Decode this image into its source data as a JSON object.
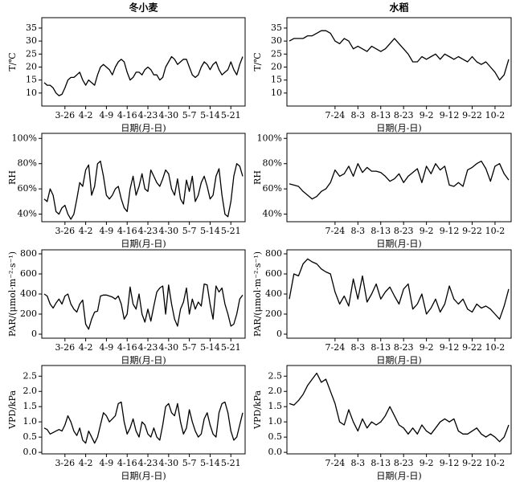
{
  "chart_data": [
    {
      "type": "line",
      "title": "冬小麦",
      "y_label": "T/℃",
      "x_label": "日期(月-日)",
      "color": "#000000",
      "categories": [
        null,
        null,
        null,
        null,
        null,
        null,
        null,
        "3-26",
        null,
        null,
        null,
        null,
        null,
        null,
        "4-2",
        null,
        null,
        null,
        null,
        null,
        null,
        "4-9",
        null,
        null,
        null,
        null,
        null,
        null,
        "4-16",
        null,
        null,
        null,
        null,
        null,
        null,
        "4-23",
        null,
        null,
        null,
        null,
        null,
        null,
        "4-30",
        null,
        null,
        null,
        null,
        null,
        null,
        "5-7",
        null,
        null,
        null,
        null,
        null,
        null,
        "5-14",
        null,
        null,
        null,
        null,
        null,
        null,
        "5-21",
        null,
        null,
        null,
        null
      ],
      "values": [
        14,
        13,
        13,
        12,
        10,
        9,
        9.5,
        12,
        15,
        16,
        16,
        17,
        18,
        15,
        13,
        15,
        14,
        13,
        17,
        20,
        21,
        20,
        19,
        17,
        20,
        22,
        23,
        22,
        18,
        15,
        16,
        18,
        18,
        17,
        19,
        20,
        19,
        17,
        17,
        15,
        16,
        20,
        22,
        24,
        23,
        21,
        22,
        23,
        23,
        20,
        17,
        16,
        17,
        20,
        22,
        21,
        19,
        21,
        22,
        19,
        17,
        18,
        19,
        22,
        19,
        17,
        21,
        24
      ],
      "ylim": [
        5,
        39
      ],
      "yticks": [
        10,
        15,
        20,
        25,
        30,
        35
      ]
    },
    {
      "type": "line",
      "title": "水稻",
      "y_label": "T/℃",
      "x_label": "日期(月-日)",
      "color": "#000000",
      "categories": [
        null,
        null,
        null,
        null,
        null,
        null,
        null,
        null,
        null,
        null,
        "7-24",
        null,
        null,
        null,
        null,
        "8-3",
        null,
        null,
        null,
        null,
        "8-13",
        null,
        null,
        null,
        null,
        "8-23",
        null,
        null,
        null,
        null,
        "9-2",
        null,
        null,
        null,
        null,
        "9-12",
        null,
        null,
        null,
        null,
        "9-22",
        null,
        null,
        null,
        null,
        "10-2",
        null,
        null,
        null
      ],
      "values": [
        30,
        31,
        31,
        31,
        32,
        32,
        33,
        34,
        34,
        33,
        30,
        29,
        31,
        30,
        27,
        28,
        27,
        26,
        28,
        27,
        26,
        27,
        29,
        31,
        29,
        27,
        25,
        22,
        22,
        24,
        23,
        24,
        25,
        23,
        25,
        24,
        23,
        24,
        23,
        22,
        24,
        22,
        21,
        22,
        20,
        18,
        15,
        17,
        23
      ],
      "ylim": [
        5,
        39
      ],
      "yticks": [
        10,
        15,
        20,
        25,
        30,
        35
      ]
    },
    {
      "type": "line",
      "y_label": "RH",
      "x_label": "日期(月-日)",
      "color": "#000000",
      "categories": [
        null,
        null,
        null,
        null,
        null,
        null,
        null,
        "3-26",
        null,
        null,
        null,
        null,
        null,
        null,
        "4-2",
        null,
        null,
        null,
        null,
        null,
        null,
        "4-9",
        null,
        null,
        null,
        null,
        null,
        null,
        "4-16",
        null,
        null,
        null,
        null,
        null,
        null,
        "4-23",
        null,
        null,
        null,
        null,
        null,
        null,
        "4-30",
        null,
        null,
        null,
        null,
        null,
        null,
        "5-7",
        null,
        null,
        null,
        null,
        null,
        null,
        "5-14",
        null,
        null,
        null,
        null,
        null,
        null,
        "5-21",
        null,
        null,
        null,
        null
      ],
      "values": [
        52,
        50,
        60,
        55,
        42,
        40,
        45,
        47,
        40,
        36,
        40,
        52,
        65,
        62,
        75,
        79,
        55,
        62,
        80,
        82,
        70,
        55,
        52,
        55,
        60,
        62,
        52,
        45,
        42,
        60,
        70,
        55,
        62,
        72,
        60,
        58,
        75,
        70,
        65,
        62,
        68,
        75,
        72,
        60,
        55,
        68,
        52,
        48,
        67,
        58,
        70,
        50,
        55,
        65,
        70,
        62,
        52,
        55,
        70,
        76,
        55,
        40,
        38,
        50,
        70,
        80,
        78,
        70
      ],
      "ylim": [
        34,
        104
      ],
      "yticks": [
        {
          "value": 40,
          "label": "40%"
        },
        {
          "value": 60,
          "label": "60%"
        },
        {
          "value": 80,
          "label": "80%"
        },
        {
          "value": 100,
          "label": "100%"
        }
      ]
    },
    {
      "type": "line",
      "y_label": "RH",
      "x_label": "日期(月-日)",
      "color": "#000000",
      "categories": [
        null,
        null,
        null,
        null,
        null,
        null,
        null,
        null,
        null,
        null,
        "7-24",
        null,
        null,
        null,
        null,
        "8-3",
        null,
        null,
        null,
        null,
        "8-13",
        null,
        null,
        null,
        null,
        "8-23",
        null,
        null,
        null,
        null,
        "9-2",
        null,
        null,
        null,
        null,
        "9-12",
        null,
        null,
        null,
        null,
        "9-22",
        null,
        null,
        null,
        null,
        "10-2",
        null,
        null,
        null
      ],
      "values": [
        64,
        63,
        62,
        58,
        55,
        52,
        54,
        58,
        60,
        65,
        75,
        70,
        72,
        78,
        70,
        80,
        73,
        77,
        74,
        74,
        73,
        70,
        66,
        68,
        72,
        65,
        70,
        73,
        76,
        65,
        78,
        72,
        80,
        75,
        78,
        63,
        62,
        65,
        62,
        75,
        77,
        80,
        82,
        76,
        66,
        78,
        80,
        72,
        67
      ],
      "ylim": [
        34,
        104
      ],
      "yticks": [
        {
          "value": 40,
          "label": "40%"
        },
        {
          "value": 60,
          "label": "60%"
        },
        {
          "value": 80,
          "label": "80%"
        },
        {
          "value": 100,
          "label": "100%"
        }
      ]
    },
    {
      "type": "line",
      "y_label": "PAR/(μmol·m⁻²·s⁻¹)",
      "x_label": "日期(月-日)",
      "color": "#000000",
      "categories": [
        null,
        null,
        null,
        null,
        null,
        null,
        null,
        "3-26",
        null,
        null,
        null,
        null,
        null,
        null,
        "4-2",
        null,
        null,
        null,
        null,
        null,
        null,
        "4-9",
        null,
        null,
        null,
        null,
        null,
        null,
        "4-16",
        null,
        null,
        null,
        null,
        null,
        null,
        "4-23",
        null,
        null,
        null,
        null,
        null,
        null,
        "4-30",
        null,
        null,
        null,
        null,
        null,
        null,
        "5-7",
        null,
        null,
        null,
        null,
        null,
        null,
        "5-14",
        null,
        null,
        null,
        null,
        null,
        null,
        "5-21",
        null,
        null,
        null,
        null
      ],
      "values": [
        400,
        380,
        300,
        260,
        310,
        350,
        300,
        380,
        400,
        300,
        250,
        220,
        300,
        340,
        100,
        50,
        150,
        220,
        230,
        380,
        390,
        390,
        380,
        370,
        350,
        380,
        300,
        150,
        200,
        470,
        300,
        250,
        400,
        200,
        120,
        250,
        130,
        280,
        420,
        460,
        480,
        200,
        490,
        300,
        150,
        80,
        250,
        320,
        460,
        200,
        350,
        250,
        320,
        280,
        500,
        490,
        300,
        150,
        480,
        420,
        460,
        300,
        200,
        80,
        100,
        200,
        350,
        390
      ],
      "ylim": [
        -40,
        840
      ],
      "yticks": [
        0,
        200,
        400,
        600,
        800
      ]
    },
    {
      "type": "line",
      "y_label": "PAR/(μmol·m⁻²·s⁻¹)",
      "x_label": "日期(月-日)",
      "color": "#000000",
      "categories": [
        null,
        null,
        null,
        null,
        null,
        null,
        null,
        null,
        null,
        null,
        "7-24",
        null,
        null,
        null,
        null,
        "8-3",
        null,
        null,
        null,
        null,
        "8-13",
        null,
        null,
        null,
        null,
        "8-23",
        null,
        null,
        null,
        null,
        "9-2",
        null,
        null,
        null,
        null,
        "9-12",
        null,
        null,
        null,
        null,
        "9-22",
        null,
        null,
        null,
        null,
        "10-2",
        null,
        null,
        null
      ],
      "values": [
        350,
        600,
        580,
        700,
        750,
        720,
        700,
        650,
        620,
        600,
        420,
        300,
        380,
        280,
        550,
        350,
        580,
        320,
        400,
        500,
        350,
        420,
        470,
        380,
        300,
        450,
        500,
        250,
        300,
        400,
        200,
        260,
        350,
        220,
        300,
        480,
        350,
        300,
        350,
        250,
        220,
        300,
        260,
        280,
        250,
        200,
        150,
        280,
        450
      ],
      "ylim": [
        -40,
        840
      ],
      "yticks": [
        0,
        200,
        400,
        600,
        800
      ]
    },
    {
      "type": "line",
      "y_label": "VPD/kPa",
      "x_label": "日期(月-日)",
      "color": "#000000",
      "categories": [
        null,
        null,
        null,
        null,
        null,
        null,
        null,
        "3-26",
        null,
        null,
        null,
        null,
        null,
        null,
        "4-2",
        null,
        null,
        null,
        null,
        null,
        null,
        "4-9",
        null,
        null,
        null,
        null,
        null,
        null,
        "4-16",
        null,
        null,
        null,
        null,
        null,
        null,
        "4-23",
        null,
        null,
        null,
        null,
        null,
        null,
        "4-30",
        null,
        null,
        null,
        null,
        null,
        null,
        "5-7",
        null,
        null,
        null,
        null,
        null,
        null,
        "5-14",
        null,
        null,
        null,
        null,
        null,
        null,
        "5-21",
        null,
        null,
        null,
        null
      ],
      "values": [
        0.8,
        0.75,
        0.6,
        0.65,
        0.7,
        0.75,
        0.7,
        0.9,
        1.2,
        1.0,
        0.7,
        0.55,
        0.8,
        0.4,
        0.3,
        0.7,
        0.5,
        0.3,
        0.5,
        0.9,
        1.3,
        1.2,
        1.0,
        1.1,
        1.2,
        1.6,
        1.65,
        1.0,
        0.6,
        0.8,
        1.1,
        0.7,
        0.5,
        1.0,
        0.9,
        0.6,
        0.5,
        0.8,
        0.5,
        0.4,
        0.9,
        1.5,
        1.6,
        1.3,
        1.2,
        1.6,
        1.0,
        0.6,
        0.8,
        1.4,
        1.0,
        0.7,
        0.5,
        0.6,
        1.1,
        1.3,
        0.9,
        0.6,
        0.5,
        1.3,
        1.6,
        1.65,
        1.3,
        0.7,
        0.4,
        0.5,
        0.9,
        1.3
      ],
      "ylim": [
        -0.05,
        2.85
      ],
      "yticks": [
        {
          "value": 0,
          "label": "0.0"
        },
        0.5,
        {
          "value": 1,
          "label": "1.0"
        },
        1.5,
        {
          "value": 2,
          "label": "2.0"
        },
        2.5
      ]
    },
    {
      "type": "line",
      "y_label": "VPD/kPa",
      "x_label": "日期(月-日)",
      "color": "#000000",
      "categories": [
        null,
        null,
        null,
        null,
        null,
        null,
        null,
        null,
        null,
        null,
        "7-24",
        null,
        null,
        null,
        null,
        "8-3",
        null,
        null,
        null,
        null,
        "8-13",
        null,
        null,
        null,
        null,
        "8-23",
        null,
        null,
        null,
        null,
        "9-2",
        null,
        null,
        null,
        null,
        "9-12",
        null,
        null,
        null,
        null,
        "9-22",
        null,
        null,
        null,
        null,
        "10-2",
        null,
        null,
        null
      ],
      "values": [
        1.6,
        1.55,
        1.7,
        1.9,
        2.2,
        2.4,
        2.6,
        2.3,
        2.4,
        2.0,
        1.6,
        1.0,
        0.9,
        1.4,
        1.0,
        0.7,
        1.1,
        0.8,
        1.0,
        0.9,
        1.0,
        1.2,
        1.5,
        1.2,
        0.9,
        0.8,
        0.6,
        0.8,
        0.6,
        0.9,
        0.7,
        0.6,
        0.8,
        1.0,
        1.1,
        1.0,
        1.1,
        0.7,
        0.6,
        0.6,
        0.7,
        0.8,
        0.6,
        0.5,
        0.6,
        0.5,
        0.35,
        0.5,
        0.9
      ],
      "ylim": [
        -0.05,
        2.85
      ],
      "yticks": [
        {
          "value": 0,
          "label": "0.0"
        },
        0.5,
        {
          "value": 1,
          "label": "1.0"
        },
        1.5,
        {
          "value": 2,
          "label": "2.0"
        },
        2.5
      ]
    }
  ]
}
